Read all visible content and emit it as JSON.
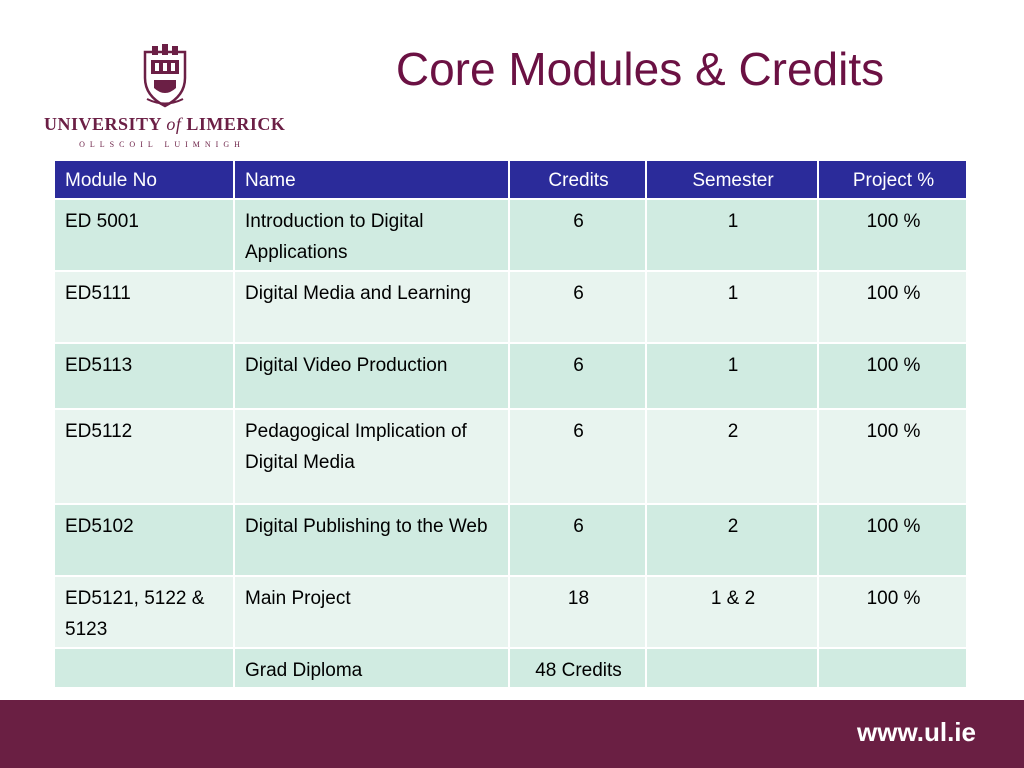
{
  "logo": {
    "name_part1": "UNIVERSITY",
    "name_of": "of",
    "name_part2": "LIMERICK",
    "subtitle": "OLLSCOIL LUIMNIGH",
    "brand_color": "#6b1f45"
  },
  "slide": {
    "title": "Core Modules & Credits"
  },
  "table": {
    "headers": [
      "Module No",
      "Name",
      "Credits",
      "Semester",
      "Project %"
    ],
    "rows": [
      [
        "ED 5001",
        "Introduction to Digital Applications",
        "6",
        "1",
        "100 %"
      ],
      [
        "ED5111",
        "Digital Media and Learning",
        "6",
        "1",
        "100 %"
      ],
      [
        "ED5113",
        "Digital Video Production",
        "6",
        "1",
        "100 %"
      ],
      [
        "ED5112",
        "Pedagogical Implication of Digital Media",
        "6",
        "2",
        "100 %"
      ],
      [
        "ED5102",
        "Digital Publishing to the Web",
        "6",
        "2",
        "100 %"
      ],
      [
        "ED5121, 5122 & 5123",
        "Main Project",
        "18",
        "1 & 2",
        "100 %"
      ],
      [
        "",
        "Grad Diploma",
        "48 Credits",
        "",
        ""
      ]
    ],
    "colors": {
      "header_bg": "#2b2b9a",
      "row_dark": "#d0ebe1",
      "row_light": "#e8f4ef"
    }
  },
  "footer": {
    "url": "www.ul.ie",
    "bg_color": "#6a1f43"
  }
}
